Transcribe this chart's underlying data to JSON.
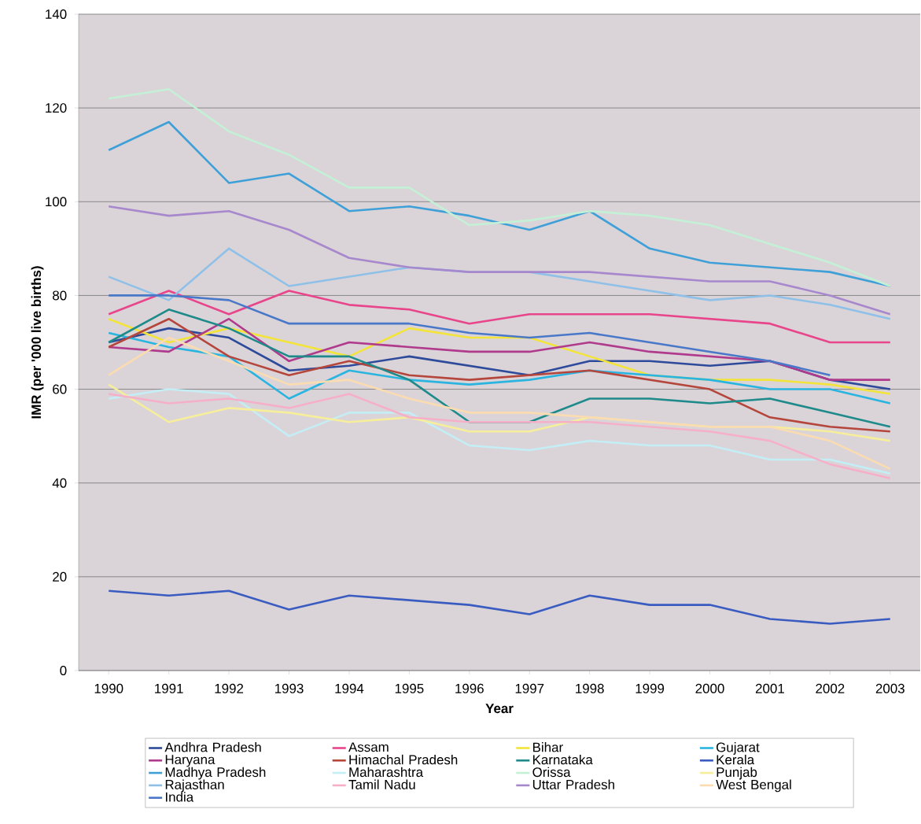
{
  "chart_data": {
    "type": "line",
    "xlabel": "Year",
    "ylabel": "IMR (per '000 live births)",
    "categories": [
      "1990",
      "1991",
      "1992",
      "1993",
      "1994",
      "1995",
      "1996",
      "1997",
      "1998",
      "1999",
      "2000",
      "2001",
      "2002",
      "2003"
    ],
    "ylim": [
      0,
      140
    ],
    "yticks": [
      0,
      20,
      40,
      60,
      80,
      100,
      120,
      140
    ],
    "grid": "y",
    "legend": "bottom",
    "series": [
      {
        "name": "Andhra Pradesh",
        "color": "#2e4a9a",
        "values": [
          70,
          73,
          71,
          64,
          65,
          67,
          65,
          63,
          66,
          66,
          65,
          66,
          62,
          60
        ]
      },
      {
        "name": "Assam",
        "color": "#e8458b",
        "values": [
          76,
          81,
          76,
          81,
          78,
          77,
          74,
          76,
          76,
          76,
          75,
          74,
          70,
          70
        ]
      },
      {
        "name": "Bihar",
        "color": "#f2e43a",
        "values": [
          75,
          70,
          73,
          70,
          67,
          73,
          71,
          71,
          67,
          63,
          62,
          62,
          61,
          59
        ]
      },
      {
        "name": "Gujarat",
        "color": "#2ab4e0",
        "values": [
          72,
          69,
          67,
          58,
          64,
          62,
          61,
          62,
          64,
          63,
          62,
          60,
          60,
          57
        ]
      },
      {
        "name": "Haryana",
        "color": "#b03a8c",
        "values": [
          69,
          68,
          75,
          66,
          70,
          69,
          68,
          68,
          70,
          68,
          67,
          66,
          62,
          62
        ]
      },
      {
        "name": "Himachal Pradesh",
        "color": "#b5463c",
        "values": [
          69,
          75,
          67,
          63,
          66,
          63,
          62,
          63,
          64,
          62,
          60,
          54,
          52,
          51
        ]
      },
      {
        "name": "Karnataka",
        "color": "#1f8a8a",
        "values": [
          70,
          77,
          73,
          67,
          67,
          62,
          53,
          53,
          58,
          58,
          57,
          58,
          55,
          52
        ]
      },
      {
        "name": "Kerala",
        "color": "#3a5cc0",
        "values": [
          17,
          16,
          17,
          13,
          16,
          15,
          14,
          12,
          16,
          14,
          14,
          11,
          10,
          11
        ]
      },
      {
        "name": "Madhya Pradesh",
        "color": "#3fa0d8",
        "values": [
          111,
          117,
          104,
          106,
          98,
          99,
          97,
          94,
          98,
          90,
          87,
          86,
          85,
          82
        ]
      },
      {
        "name": "Maharashtra",
        "color": "#c4eef5",
        "values": [
          58,
          60,
          59,
          50,
          55,
          55,
          48,
          47,
          49,
          48,
          48,
          45,
          45,
          42
        ]
      },
      {
        "name": "Orissa",
        "color": "#c4f0d6",
        "values": [
          122,
          124,
          115,
          110,
          103,
          103,
          95,
          96,
          98,
          97,
          95,
          91,
          87,
          82
        ]
      },
      {
        "name": "Punjab",
        "color": "#f6ee9a",
        "values": [
          61,
          53,
          56,
          55,
          53,
          54,
          51,
          51,
          54,
          53,
          52,
          52,
          51,
          49
        ]
      },
      {
        "name": "Rajasthan",
        "color": "#8ec0e8",
        "values": [
          84,
          79,
          90,
          82,
          84,
          86,
          85,
          85,
          83,
          81,
          79,
          80,
          78,
          75
        ]
      },
      {
        "name": "Tamil Nadu",
        "color": "#f5b0c8",
        "values": [
          59,
          57,
          58,
          56,
          59,
          54,
          53,
          53,
          53,
          52,
          51,
          49,
          44,
          41
        ]
      },
      {
        "name": "Uttar Pradesh",
        "color": "#a888cc",
        "values": [
          99,
          97,
          98,
          94,
          88,
          86,
          85,
          85,
          85,
          84,
          83,
          83,
          80,
          76
        ]
      },
      {
        "name": "West Bengal",
        "color": "#fbdcb0",
        "values": [
          63,
          71,
          66,
          61,
          62,
          58,
          55,
          55,
          54,
          53,
          52,
          52,
          49,
          43
        ]
      },
      {
        "name": "India",
        "color": "#4a78c8",
        "values": [
          80,
          80,
          79,
          74,
          74,
          74,
          72,
          71,
          72,
          70,
          68,
          66,
          63,
          null
        ]
      }
    ]
  }
}
